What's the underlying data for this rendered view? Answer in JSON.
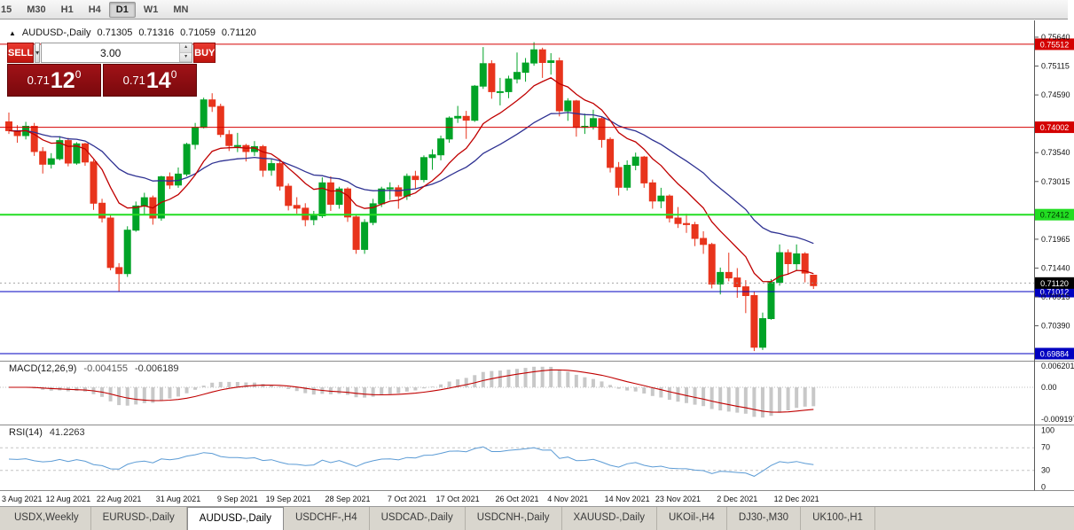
{
  "topbar": {
    "timeframes": [
      "15",
      "M30",
      "H1",
      "H4",
      "D1",
      "W1",
      "MN"
    ],
    "active": "D1"
  },
  "title": {
    "symbol": "AUDUSD-,Daily",
    "open": "0.71305",
    "high": "0.71316",
    "low": "0.71059",
    "close": "0.71120"
  },
  "trade_panel": {
    "sell_label": "SELL",
    "buy_label": "BUY",
    "volume": "3.00",
    "sell_price": {
      "prefix": "0.71",
      "pips": "12",
      "sup": "0"
    },
    "buy_price": {
      "prefix": "0.71",
      "pips": "14",
      "sup": "0"
    }
  },
  "main_chart": {
    "up_color": "#00a327",
    "down_color": "#e8341c",
    "ma_fast_color": "#c00000",
    "ma_slow_color": "#2e3192",
    "y_ticks": [
      {
        "label": "0.75640",
        "price": 0.7564
      },
      {
        "label": "0.75115",
        "price": 0.75115
      },
      {
        "label": "0.74590",
        "price": 0.7459
      },
      {
        "label": "0.73540",
        "price": 0.7354
      },
      {
        "label": "0.73015",
        "price": 0.73015
      },
      {
        "label": "0.71965",
        "price": 0.71965
      },
      {
        "label": "0.71440",
        "price": 0.7144
      },
      {
        "label": "0.70915",
        "price": 0.70915
      },
      {
        "label": "0.70390",
        "price": 0.7039
      }
    ],
    "levels": [
      {
        "price": 0.75512,
        "label": "0.75512",
        "color": "#d40000",
        "badge_bg": "#d40000",
        "text": "#ffffff",
        "width": 1
      },
      {
        "price": 0.74002,
        "label": "0.74002",
        "color": "#d40000",
        "badge_bg": "#d40000",
        "text": "#ffffff",
        "width": 1
      },
      {
        "price": 0.72412,
        "label": "0.72412",
        "color": "#22dd22",
        "badge_bg": "#22dd22",
        "text": "#003300",
        "width": 2
      },
      {
        "price": 0.71012,
        "label": "0.71012",
        "color": "#0000c0",
        "badge_bg": "#0000c0",
        "text": "#ffffff",
        "width": 1
      },
      {
        "price": 0.69884,
        "label": "0.69884",
        "color": "#0000c0",
        "badge_bg": "#0000c0",
        "text": "#ffffff",
        "width": 1
      }
    ],
    "current_price": {
      "price": 0.7112,
      "label": "0.71120",
      "badge_bg": "#000000",
      "text": "#ffffff"
    },
    "x_labels": [
      {
        "label": "3 Aug 2021",
        "idx": 0
      },
      {
        "label": "12 Aug 2021",
        "idx": 7
      },
      {
        "label": "22 Aug 2021",
        "idx": 13
      },
      {
        "label": "31 Aug 2021",
        "idx": 20
      },
      {
        "label": "9 Sep 2021",
        "idx": 27
      },
      {
        "label": "19 Sep 2021",
        "idx": 33
      },
      {
        "label": "28 Sep 2021",
        "idx": 40
      },
      {
        "label": "7 Oct 2021",
        "idx": 47
      },
      {
        "label": "17 Oct 2021",
        "idx": 53
      },
      {
        "label": "26 Oct 2021",
        "idx": 60
      },
      {
        "label": "4 Nov 2021",
        "idx": 66
      },
      {
        "label": "14 Nov 2021",
        "idx": 73
      },
      {
        "label": "23 Nov 2021",
        "idx": 79
      },
      {
        "label": "2 Dec 2021",
        "idx": 86
      },
      {
        "label": "12 Dec 2021",
        "idx": 93
      }
    ],
    "candles": [
      [
        0.741,
        0.7427,
        0.7388,
        0.7394
      ],
      [
        0.7394,
        0.7404,
        0.7372,
        0.7385
      ],
      [
        0.7385,
        0.741,
        0.7378,
        0.7402
      ],
      [
        0.7402,
        0.7408,
        0.7348,
        0.7356
      ],
      [
        0.7356,
        0.7364,
        0.7316,
        0.7333
      ],
      [
        0.7333,
        0.7353,
        0.7325,
        0.7343
      ],
      [
        0.7343,
        0.7384,
        0.734,
        0.7376
      ],
      [
        0.7376,
        0.7381,
        0.7329,
        0.7335
      ],
      [
        0.7335,
        0.7373,
        0.7332,
        0.737
      ],
      [
        0.737,
        0.7372,
        0.733,
        0.7337
      ],
      [
        0.7337,
        0.7341,
        0.725,
        0.7262
      ],
      [
        0.7262,
        0.727,
        0.7227,
        0.7235
      ],
      [
        0.7235,
        0.7242,
        0.714,
        0.7145
      ],
      [
        0.7145,
        0.7153,
        0.7102,
        0.7134
      ],
      [
        0.7134,
        0.722,
        0.7128,
        0.7213
      ],
      [
        0.7213,
        0.7265,
        0.721,
        0.7257
      ],
      [
        0.7257,
        0.7281,
        0.724,
        0.7272
      ],
      [
        0.7272,
        0.7276,
        0.7223,
        0.7235
      ],
      [
        0.7235,
        0.7312,
        0.723,
        0.731
      ],
      [
        0.731,
        0.7318,
        0.7288,
        0.7295
      ],
      [
        0.7295,
        0.7327,
        0.729,
        0.7315
      ],
      [
        0.7315,
        0.7372,
        0.7311,
        0.7369
      ],
      [
        0.7369,
        0.7408,
        0.736,
        0.74
      ],
      [
        0.74,
        0.7454,
        0.7398,
        0.745
      ],
      [
        0.745,
        0.7462,
        0.7428,
        0.7438
      ],
      [
        0.7438,
        0.7443,
        0.7382,
        0.7387
      ],
      [
        0.7387,
        0.7395,
        0.7357,
        0.7367
      ],
      [
        0.7367,
        0.739,
        0.7355,
        0.7367
      ],
      [
        0.7367,
        0.737,
        0.7338,
        0.7356
      ],
      [
        0.7356,
        0.7375,
        0.7348,
        0.7365
      ],
      [
        0.7365,
        0.7368,
        0.731,
        0.7322
      ],
      [
        0.7322,
        0.7342,
        0.7312,
        0.7334
      ],
      [
        0.7334,
        0.734,
        0.7285,
        0.7293
      ],
      [
        0.7293,
        0.7298,
        0.7249,
        0.7258
      ],
      [
        0.7258,
        0.7273,
        0.7243,
        0.7253
      ],
      [
        0.7253,
        0.7262,
        0.722,
        0.7232
      ],
      [
        0.7232,
        0.7248,
        0.7222,
        0.7239
      ],
      [
        0.7239,
        0.7309,
        0.7235,
        0.7299
      ],
      [
        0.7299,
        0.7311,
        0.7248,
        0.726
      ],
      [
        0.726,
        0.7292,
        0.7252,
        0.7288
      ],
      [
        0.7288,
        0.7291,
        0.7228,
        0.7237
      ],
      [
        0.7237,
        0.7242,
        0.717,
        0.7178
      ],
      [
        0.7178,
        0.7233,
        0.717,
        0.7227
      ],
      [
        0.7227,
        0.727,
        0.7222,
        0.7261
      ],
      [
        0.7261,
        0.7292,
        0.7255,
        0.7288
      ],
      [
        0.7288,
        0.73,
        0.7268,
        0.729
      ],
      [
        0.729,
        0.7295,
        0.7252,
        0.7275
      ],
      [
        0.7275,
        0.7316,
        0.7268,
        0.7311
      ],
      [
        0.7311,
        0.7321,
        0.7288,
        0.7305
      ],
      [
        0.7305,
        0.7349,
        0.73,
        0.7345
      ],
      [
        0.7345,
        0.736,
        0.7323,
        0.735
      ],
      [
        0.735,
        0.7385,
        0.734,
        0.7379
      ],
      [
        0.7379,
        0.742,
        0.7372,
        0.7417
      ],
      [
        0.7417,
        0.7439,
        0.7408,
        0.742
      ],
      [
        0.742,
        0.743,
        0.7379,
        0.7413
      ],
      [
        0.7413,
        0.7477,
        0.741,
        0.7475
      ],
      [
        0.7475,
        0.7546,
        0.747,
        0.7516
      ],
      [
        0.7516,
        0.7522,
        0.7452,
        0.7465
      ],
      [
        0.7465,
        0.749,
        0.744,
        0.7465
      ],
      [
        0.7465,
        0.7494,
        0.7453,
        0.7488
      ],
      [
        0.7488,
        0.7536,
        0.748,
        0.75
      ],
      [
        0.75,
        0.7526,
        0.7483,
        0.7517
      ],
      [
        0.7517,
        0.7555,
        0.7512,
        0.7541
      ],
      [
        0.7541,
        0.7545,
        0.749,
        0.7518
      ],
      [
        0.7518,
        0.7535,
        0.7496,
        0.7521
      ],
      [
        0.7521,
        0.7527,
        0.742,
        0.743
      ],
      [
        0.743,
        0.7453,
        0.7412,
        0.7448
      ],
      [
        0.7448,
        0.745,
        0.7383,
        0.74
      ],
      [
        0.74,
        0.7425,
        0.7388,
        0.7402
      ],
      [
        0.7402,
        0.7432,
        0.7396,
        0.7416
      ],
      [
        0.7416,
        0.742,
        0.7363,
        0.7378
      ],
      [
        0.7378,
        0.7382,
        0.7318,
        0.7327
      ],
      [
        0.7327,
        0.7337,
        0.7276,
        0.7291
      ],
      [
        0.7291,
        0.734,
        0.7285,
        0.7331
      ],
      [
        0.7331,
        0.7354,
        0.7322,
        0.7346
      ],
      [
        0.7346,
        0.7348,
        0.729,
        0.7299
      ],
      [
        0.7299,
        0.7305,
        0.7252,
        0.7266
      ],
      [
        0.7266,
        0.729,
        0.7253,
        0.7275
      ],
      [
        0.7275,
        0.7278,
        0.7227,
        0.7235
      ],
      [
        0.7235,
        0.7255,
        0.7217,
        0.7225
      ],
      [
        0.7225,
        0.7243,
        0.7208,
        0.7223
      ],
      [
        0.7223,
        0.7228,
        0.7184,
        0.7198
      ],
      [
        0.7198,
        0.7211,
        0.717,
        0.7187
      ],
      [
        0.7187,
        0.719,
        0.7107,
        0.7115
      ],
      [
        0.7115,
        0.7145,
        0.7096,
        0.7136
      ],
      [
        0.7136,
        0.7172,
        0.712,
        0.7126
      ],
      [
        0.7126,
        0.7144,
        0.709,
        0.711
      ],
      [
        0.711,
        0.7122,
        0.7062,
        0.7094
      ],
      [
        0.7094,
        0.7101,
        0.6993,
        0.7
      ],
      [
        0.7,
        0.7063,
        0.6995,
        0.7052
      ],
      [
        0.7052,
        0.7124,
        0.705,
        0.7118
      ],
      [
        0.7118,
        0.7187,
        0.7112,
        0.7172
      ],
      [
        0.7172,
        0.7178,
        0.7132,
        0.7152
      ],
      [
        0.7152,
        0.7187,
        0.714,
        0.717
      ],
      [
        0.717,
        0.7173,
        0.7118,
        0.7135
      ],
      [
        0.7131,
        0.7132,
        0.7106,
        0.7112
      ]
    ]
  },
  "macd": {
    "label": "MACD(12,26,9)",
    "value1": "-0.004155",
    "value2": "-0.006189",
    "scale_top": "0.006201",
    "scale_mid": "0.00",
    "scale_bottom": "-0.009197",
    "vmax": 0.006201,
    "vmin": -0.009197,
    "hist_color": "#c8c8c8",
    "signal_color": "#c00000"
  },
  "rsi": {
    "label": "RSI(14)",
    "value": "41.2263",
    "scale": [
      "100",
      "70",
      "30",
      "0"
    ],
    "scale_values": [
      100,
      70,
      30,
      0
    ],
    "levels": [
      70,
      30
    ],
    "line_color": "#5b9bd5"
  },
  "tabs": [
    {
      "label": "USDX,Weekly",
      "active": false
    },
    {
      "label": "EURUSD-,Daily",
      "active": false
    },
    {
      "label": "AUDUSD-,Daily",
      "active": true
    },
    {
      "label": "USDCHF-,H4",
      "active": false
    },
    {
      "label": "USDCAD-,Daily",
      "active": false
    },
    {
      "label": "USDCNH-,Daily",
      "active": false
    },
    {
      "label": "XAUUSD-,Daily",
      "active": false
    },
    {
      "label": "UKOil-,H4",
      "active": false
    },
    {
      "label": "DJ30-,M30",
      "active": false
    },
    {
      "label": "UK100-,H1",
      "active": false
    }
  ]
}
